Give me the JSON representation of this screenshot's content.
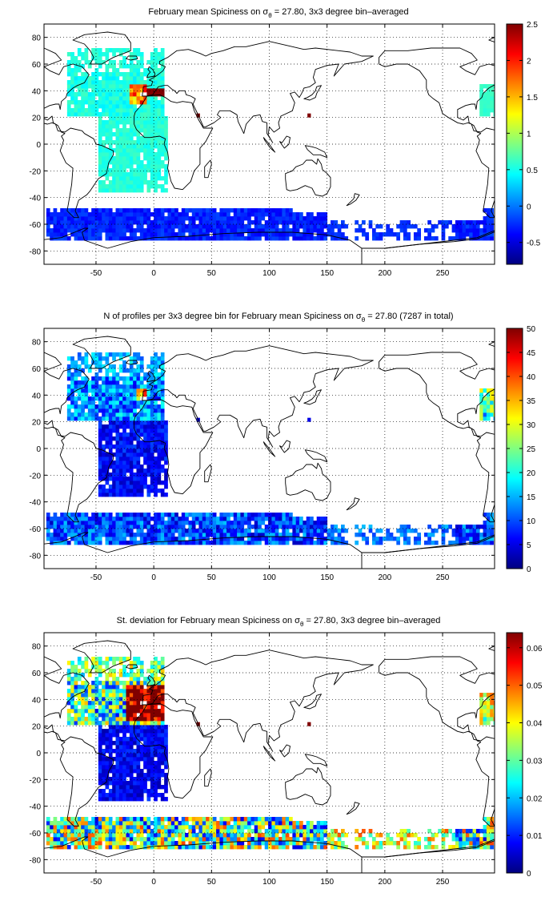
{
  "charts": [
    {
      "title_prefix": "February mean Spiciness on σ",
      "title_sub": "θ",
      "title_suffix": " = 27.80, 3x3 degree bin–averaged",
      "colorbar": {
        "min": -0.8,
        "max": 2.5,
        "ticks": [
          "2.5",
          "2",
          "1.5",
          "1",
          "0.5",
          "0",
          "-0.5"
        ]
      }
    },
    {
      "title_prefix": "N of profiles per 3x3 degree bin for February mean Spiciness on σ",
      "title_sub": "θ",
      "title_suffix": " = 27.80 (7287 in total)",
      "colorbar": {
        "min": 0,
        "max": 50,
        "ticks": [
          "50",
          "45",
          "40",
          "35",
          "30",
          "25",
          "20",
          "15",
          "10",
          "5",
          "0"
        ]
      }
    },
    {
      "title_prefix": "St. deviation for February mean Spiciness on σ",
      "title_sub": "θ",
      "title_suffix": " = 27.80, 3x3 degree bin–averaged",
      "colorbar": {
        "min": 0,
        "max": 0.064,
        "ticks": [
          "0.06",
          "0.05",
          "0.04",
          "0.03",
          "0.02",
          "0.01",
          "0"
        ]
      }
    }
  ],
  "chart_data": [
    {
      "type": "heatmap",
      "title": "February mean Spiciness on σθ = 27.80, 3x3 degree bin–averaged",
      "xlabel": "",
      "ylabel": "",
      "xlim": [
        -95,
        295
      ],
      "ylim": [
        -90,
        90
      ],
      "xticks": [
        -50,
        0,
        50,
        100,
        150,
        200,
        250
      ],
      "yticks": [
        80,
        60,
        40,
        20,
        0,
        -20,
        -40,
        -60,
        -80
      ],
      "grid": true,
      "colorbar_range": [
        -0.8,
        2.5
      ],
      "regions": [
        {
          "lon": [
            -60,
            10
          ],
          "lat": [
            30,
            70
          ],
          "value": 0.45
        },
        {
          "lon": [
            -20,
            -5
          ],
          "lat": [
            30,
            45
          ],
          "value": 1.8
        },
        {
          "lon": [
            -5,
            15
          ],
          "lat": [
            35,
            42
          ],
          "value": 2.5
        },
        {
          "lon": [
            -45,
            10
          ],
          "lat": [
            -35,
            25
          ],
          "value": 0.55
        },
        {
          "lon": [
            -85,
            285
          ],
          "lat": [
            -70,
            -50
          ],
          "value": -0.3
        },
        {
          "lon": [
            283,
            295
          ],
          "lat": [
            20,
            45
          ],
          "value": 0.6
        }
      ]
    },
    {
      "type": "heatmap",
      "title": "N of profiles per 3x3 degree bin for February mean Spiciness on σθ = 27.80 (7287 in total)",
      "xlabel": "",
      "ylabel": "",
      "xlim": [
        -95,
        295
      ],
      "ylim": [
        -90,
        90
      ],
      "xticks": [
        -50,
        0,
        50,
        100,
        150,
        200,
        250
      ],
      "yticks": [
        80,
        60,
        40,
        20,
        0,
        -20,
        -40,
        -60,
        -80
      ],
      "grid": true,
      "colorbar_range": [
        0,
        50
      ],
      "regions": [
        {
          "lon": [
            -60,
            10
          ],
          "lat": [
            20,
            70
          ],
          "value": 8
        },
        {
          "lon": [
            -15,
            -5
          ],
          "lat": [
            35,
            45
          ],
          "value": 30
        },
        {
          "lon": [
            -45,
            10
          ],
          "lat": [
            -35,
            25
          ],
          "value": 5
        },
        {
          "lon": [
            -85,
            285
          ],
          "lat": [
            -70,
            -50
          ],
          "value": 6
        },
        {
          "lon": [
            283,
            295
          ],
          "lat": [
            20,
            45
          ],
          "value": 15
        }
      ]
    },
    {
      "type": "heatmap",
      "title": "St. deviation for February mean Spiciness on σθ = 27.80, 3x3 degree bin–averaged",
      "xlabel": "",
      "ylabel": "",
      "xlim": [
        -95,
        295
      ],
      "ylim": [
        -90,
        90
      ],
      "xticks": [
        -50,
        0,
        50,
        100,
        150,
        200,
        250
      ],
      "yticks": [
        80,
        60,
        40,
        20,
        0,
        -20,
        -40,
        -60,
        -80
      ],
      "grid": true,
      "colorbar_range": [
        0,
        0.064
      ],
      "regions": [
        {
          "lon": [
            -60,
            10
          ],
          "lat": [
            20,
            70
          ],
          "value": 0.02
        },
        {
          "lon": [
            -25,
            10
          ],
          "lat": [
            25,
            50
          ],
          "value": 0.064
        },
        {
          "lon": [
            -45,
            10
          ],
          "lat": [
            -35,
            25
          ],
          "value": 0.005
        },
        {
          "lon": [
            -85,
            285
          ],
          "lat": [
            -70,
            -50
          ],
          "value": 0.015
        },
        {
          "lon": [
            283,
            295
          ],
          "lat": [
            20,
            45
          ],
          "value": 0.03
        }
      ]
    }
  ]
}
